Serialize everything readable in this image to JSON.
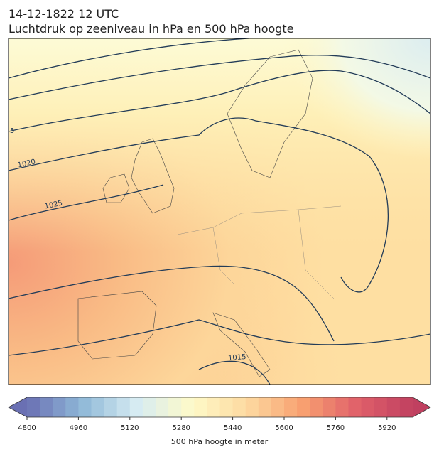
{
  "header": {
    "date": "14-12-1822 12 UTC",
    "title": "Luchtdruk op zeeniveau in hPa en 500 hPa hoogte"
  },
  "contour_labels": [
    "1020",
    "1025",
    "1015",
    "5"
  ],
  "colorbar": {
    "label": "500 hPa hoogte in meter",
    "lim": [
      4800,
      6000
    ],
    "ticks": [
      4800,
      4960,
      5120,
      5280,
      5440,
      5600,
      5760,
      5920
    ],
    "colors": [
      "#6a70b3",
      "#8fb8d8",
      "#d7ecf2",
      "#fefac8",
      "#fdd9a0",
      "#f8a070",
      "#e0606a",
      "#c04060"
    ]
  }
}
